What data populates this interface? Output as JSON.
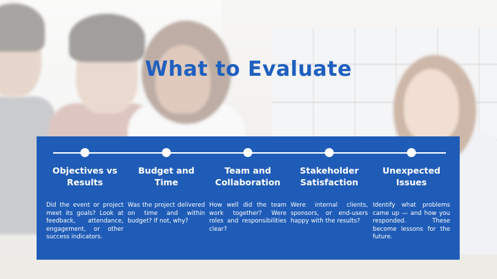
{
  "slide": {
    "title": "What to Evaluate",
    "colors": {
      "title": "#1f5fbf",
      "panel": "#1f5cb7",
      "panel_text": "#ffffff"
    },
    "items": [
      {
        "heading": "Objectives vs Results",
        "body": "Did the event or project meet its goals? Look at feedback, attendance, engagement, or other success indicators."
      },
      {
        "heading": "Budget and Time",
        "body": "Was the project delivered on time and within budget? If not, why?"
      },
      {
        "heading": "Team and Collaboration",
        "body": "How well did the team work together? Were roles and responsibilities clear?"
      },
      {
        "heading": "Stakeholder Satisfaction",
        "body": "Were internal clients, sponsors, or end-users happy with the results?"
      },
      {
        "heading": "Unexpected Issues",
        "body": "Identify what problems came up — and how you responded. These become lessons for the future."
      }
    ]
  }
}
